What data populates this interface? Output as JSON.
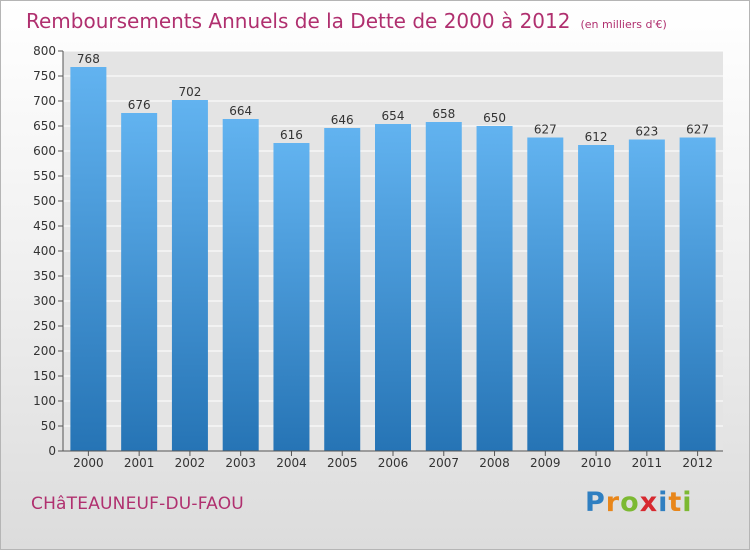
{
  "title": "Remboursements Annuels de la Dette de 2000 à 2012",
  "unit": "(en milliers d'€)",
  "commune": "CHâTEAUNEUF-DU-FAOU",
  "logo": {
    "letters": [
      "P",
      "r",
      "o",
      "x",
      "i",
      "t",
      "i"
    ],
    "colors": [
      "#2f7fc1",
      "#e8861a",
      "#7cb932",
      "#d7282f",
      "#2f7fc1",
      "#e8861a",
      "#7cb932"
    ]
  },
  "colors": {
    "title": "#b0306f",
    "bar_top": "#62b3f0",
    "bar_bottom": "#2674b5"
  },
  "chart_data": {
    "type": "bar",
    "title": "Remboursements Annuels de la Dette de 2000 à 2012",
    "categories": [
      "2000",
      "2001",
      "2002",
      "2003",
      "2004",
      "2005",
      "2006",
      "2007",
      "2008",
      "2009",
      "2010",
      "2011",
      "2012"
    ],
    "values": [
      768,
      676,
      702,
      664,
      616,
      646,
      654,
      658,
      650,
      627,
      612,
      623,
      627
    ],
    "ylim": [
      0,
      800
    ],
    "yticks": [
      0,
      50,
      100,
      150,
      200,
      250,
      300,
      350,
      400,
      450,
      500,
      550,
      600,
      650,
      700,
      750,
      800
    ],
    "grid": true,
    "legend": "none"
  }
}
